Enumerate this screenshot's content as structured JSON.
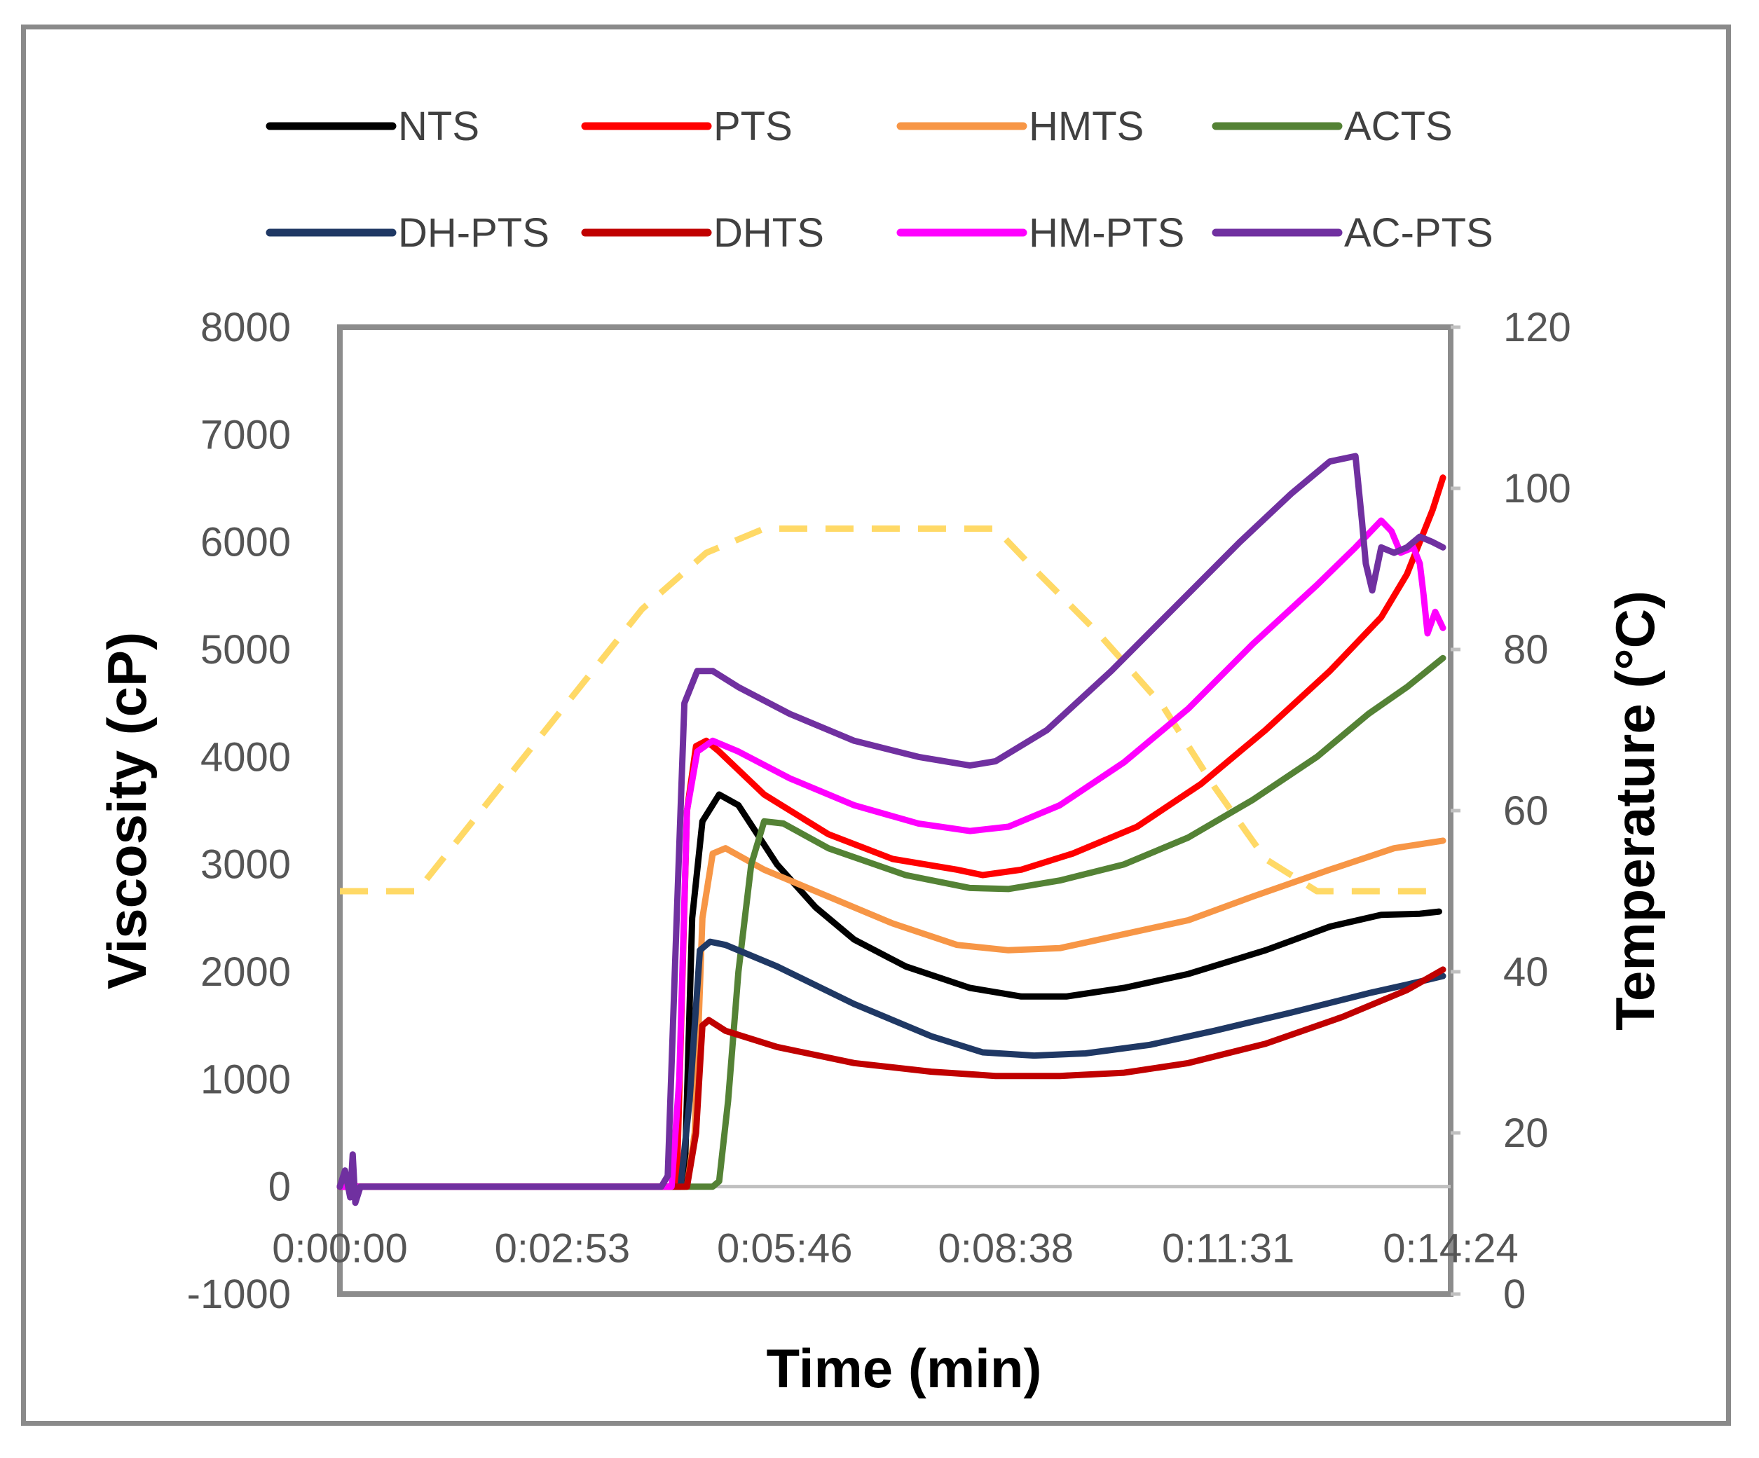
{
  "chart_data": {
    "type": "line",
    "xlabel": "Time (min)",
    "ylabel": "Viscosity (cP)",
    "y2label": "Temperature (°C)",
    "xlim": [
      0,
      864
    ],
    "ylim": [
      -1000,
      8000
    ],
    "y2lim": [
      0,
      120
    ],
    "x_tick_labels": [
      "0:00:00",
      "0:02:53",
      "0:05:46",
      "0:08:38",
      "0:11:31",
      "0:14:24"
    ],
    "x_tick_values": [
      0,
      173,
      346,
      518,
      691,
      864
    ],
    "y_ticks": [
      -1000,
      0,
      1000,
      2000,
      3000,
      4000,
      5000,
      6000,
      7000,
      8000
    ],
    "y2_ticks": [
      0,
      20,
      40,
      60,
      80,
      100,
      120
    ],
    "legend_position": "top",
    "grid": false,
    "series": [
      {
        "name": "NTS",
        "color": "#000000",
        "axis": "left",
        "points": [
          [
            0,
            0
          ],
          [
            250,
            0
          ],
          [
            268,
            0
          ],
          [
            274,
            2500
          ],
          [
            282,
            3400
          ],
          [
            295,
            3650
          ],
          [
            310,
            3550
          ],
          [
            340,
            3000
          ],
          [
            370,
            2600
          ],
          [
            400,
            2300
          ],
          [
            440,
            2050
          ],
          [
            490,
            1850
          ],
          [
            530,
            1770
          ],
          [
            565,
            1770
          ],
          [
            610,
            1850
          ],
          [
            660,
            1980
          ],
          [
            720,
            2200
          ],
          [
            770,
            2420
          ],
          [
            810,
            2530
          ],
          [
            840,
            2540
          ],
          [
            855,
            2560
          ]
        ]
      },
      {
        "name": "PTS",
        "color": "#ff0000",
        "axis": "left",
        "points": [
          [
            0,
            0
          ],
          [
            250,
            0
          ],
          [
            262,
            0
          ],
          [
            270,
            3500
          ],
          [
            277,
            4100
          ],
          [
            285,
            4150
          ],
          [
            295,
            4050
          ],
          [
            330,
            3650
          ],
          [
            380,
            3280
          ],
          [
            430,
            3050
          ],
          [
            480,
            2950
          ],
          [
            500,
            2900
          ],
          [
            530,
            2950
          ],
          [
            570,
            3100
          ],
          [
            620,
            3350
          ],
          [
            670,
            3750
          ],
          [
            720,
            4250
          ],
          [
            770,
            4800
          ],
          [
            810,
            5300
          ],
          [
            830,
            5700
          ],
          [
            850,
            6300
          ],
          [
            858,
            6600
          ]
        ]
      },
      {
        "name": "HMTS",
        "color": "#f79646",
        "axis": "left",
        "points": [
          [
            0,
            0
          ],
          [
            270,
            0
          ],
          [
            276,
            500
          ],
          [
            282,
            2500
          ],
          [
            290,
            3100
          ],
          [
            300,
            3150
          ],
          [
            330,
            2950
          ],
          [
            380,
            2700
          ],
          [
            430,
            2450
          ],
          [
            480,
            2250
          ],
          [
            520,
            2200
          ],
          [
            560,
            2220
          ],
          [
            610,
            2350
          ],
          [
            660,
            2480
          ],
          [
            710,
            2700
          ],
          [
            770,
            2950
          ],
          [
            820,
            3150
          ],
          [
            858,
            3220
          ]
        ]
      },
      {
        "name": "ACTS",
        "color": "#548235",
        "axis": "left",
        "points": [
          [
            0,
            0
          ],
          [
            290,
            0
          ],
          [
            295,
            50
          ],
          [
            302,
            800
          ],
          [
            310,
            2000
          ],
          [
            320,
            3000
          ],
          [
            330,
            3400
          ],
          [
            345,
            3380
          ],
          [
            380,
            3150
          ],
          [
            440,
            2900
          ],
          [
            490,
            2780
          ],
          [
            520,
            2770
          ],
          [
            560,
            2850
          ],
          [
            610,
            3000
          ],
          [
            660,
            3250
          ],
          [
            710,
            3600
          ],
          [
            760,
            4000
          ],
          [
            800,
            4400
          ],
          [
            830,
            4650
          ],
          [
            858,
            4920
          ]
        ]
      },
      {
        "name": "DH-PTS",
        "color": "#1f3864",
        "axis": "left",
        "points": [
          [
            0,
            0
          ],
          [
            265,
            0
          ],
          [
            272,
            800
          ],
          [
            280,
            2200
          ],
          [
            288,
            2280
          ],
          [
            300,
            2250
          ],
          [
            340,
            2050
          ],
          [
            400,
            1700
          ],
          [
            460,
            1400
          ],
          [
            500,
            1250
          ],
          [
            540,
            1220
          ],
          [
            580,
            1240
          ],
          [
            630,
            1320
          ],
          [
            680,
            1450
          ],
          [
            740,
            1620
          ],
          [
            800,
            1800
          ],
          [
            830,
            1880
          ],
          [
            858,
            1960
          ]
        ]
      },
      {
        "name": "DHTS",
        "color": "#c00000",
        "axis": "left",
        "points": [
          [
            0,
            0
          ],
          [
            270,
            0
          ],
          [
            277,
            500
          ],
          [
            282,
            1500
          ],
          [
            287,
            1550
          ],
          [
            300,
            1450
          ],
          [
            340,
            1300
          ],
          [
            400,
            1150
          ],
          [
            460,
            1070
          ],
          [
            510,
            1030
          ],
          [
            560,
            1030
          ],
          [
            610,
            1060
          ],
          [
            660,
            1150
          ],
          [
            720,
            1330
          ],
          [
            780,
            1580
          ],
          [
            830,
            1830
          ],
          [
            858,
            2020
          ]
        ]
      },
      {
        "name": "HM-PTS",
        "color": "#ff00ff",
        "axis": "left",
        "points": [
          [
            0,
            0
          ],
          [
            258,
            0
          ],
          [
            264,
            1000
          ],
          [
            270,
            3500
          ],
          [
            278,
            4050
          ],
          [
            290,
            4150
          ],
          [
            310,
            4050
          ],
          [
            350,
            3800
          ],
          [
            400,
            3550
          ],
          [
            450,
            3380
          ],
          [
            490,
            3310
          ],
          [
            520,
            3350
          ],
          [
            560,
            3550
          ],
          [
            610,
            3950
          ],
          [
            660,
            4450
          ],
          [
            710,
            5050
          ],
          [
            760,
            5600
          ],
          [
            790,
            5950
          ],
          [
            810,
            6200
          ],
          [
            818,
            6100
          ],
          [
            825,
            5900
          ],
          [
            835,
            5950
          ],
          [
            840,
            5800
          ],
          [
            843,
            5500
          ],
          [
            846,
            5150
          ],
          [
            852,
            5350
          ],
          [
            858,
            5200
          ]
        ]
      },
      {
        "name": "AC-PTS",
        "color": "#7030a0",
        "axis": "left",
        "points": [
          [
            0,
            0
          ],
          [
            4,
            150
          ],
          [
            8,
            -100
          ],
          [
            10,
            300
          ],
          [
            12,
            -150
          ],
          [
            16,
            0
          ],
          [
            250,
            0
          ],
          [
            255,
            100
          ],
          [
            262,
            2500
          ],
          [
            268,
            4500
          ],
          [
            278,
            4800
          ],
          [
            290,
            4800
          ],
          [
            310,
            4650
          ],
          [
            350,
            4400
          ],
          [
            400,
            4150
          ],
          [
            450,
            4000
          ],
          [
            490,
            3920
          ],
          [
            510,
            3960
          ],
          [
            550,
            4250
          ],
          [
            600,
            4800
          ],
          [
            650,
            5400
          ],
          [
            700,
            6000
          ],
          [
            740,
            6450
          ],
          [
            770,
            6750
          ],
          [
            790,
            6800
          ],
          [
            795,
            6200
          ],
          [
            798,
            5800
          ],
          [
            803,
            5550
          ],
          [
            810,
            5950
          ],
          [
            820,
            5900
          ],
          [
            830,
            5950
          ],
          [
            840,
            6050
          ],
          [
            850,
            6000
          ],
          [
            858,
            5950
          ]
        ]
      }
    ],
    "temperature_series": {
      "color": "#ffd966",
      "style": "dashed",
      "axis": "right",
      "points": [
        [
          0,
          50
        ],
        [
          60,
          50
        ],
        [
          120,
          62
        ],
        [
          180,
          74
        ],
        [
          235,
          85
        ],
        [
          285,
          92
        ],
        [
          330,
          95
        ],
        [
          400,
          95
        ],
        [
          470,
          95
        ],
        [
          510,
          95
        ],
        [
          540,
          90
        ],
        [
          590,
          82
        ],
        [
          640,
          73
        ],
        [
          680,
          63
        ],
        [
          720,
          54
        ],
        [
          760,
          50
        ],
        [
          858,
          50
        ]
      ]
    }
  }
}
